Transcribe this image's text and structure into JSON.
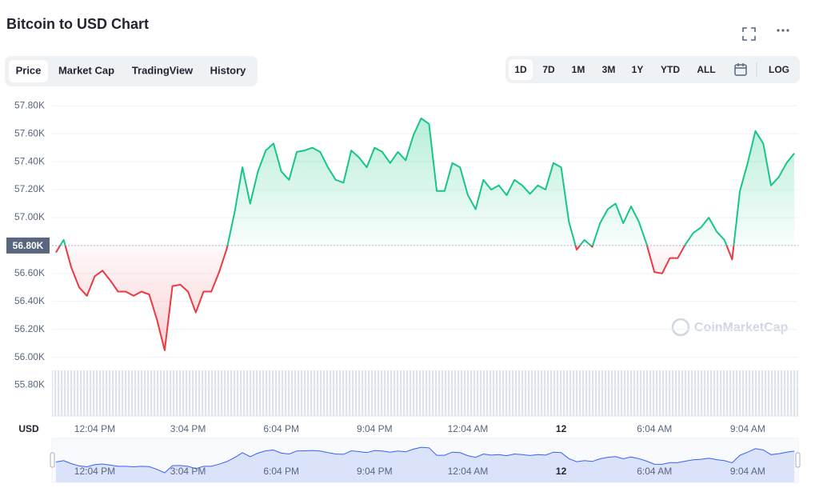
{
  "ui": {
    "tabs": [
      "Price",
      "Market Cap",
      "TradingView",
      "History"
    ],
    "active_tab": 0,
    "ranges": [
      "1D",
      "7D",
      "1M",
      "3M",
      "1Y",
      "YTD",
      "ALL"
    ],
    "active_range": 0,
    "log_button": "LOG",
    "watermark": "CoinMarketCap"
  },
  "chart_data": {
    "type": "line",
    "title": "Bitcoin to USD Chart",
    "yaxis_label": "USD",
    "categories": [
      null,
      null,
      null,
      null,
      null,
      "12:04 PM",
      null,
      null,
      null,
      null,
      null,
      null,
      null,
      null,
      null,
      null,
      null,
      "3:04 PM",
      null,
      null,
      null,
      null,
      null,
      null,
      null,
      null,
      null,
      null,
      null,
      "6:04 PM",
      null,
      null,
      null,
      null,
      null,
      null,
      null,
      null,
      null,
      null,
      null,
      "9:04 PM",
      null,
      null,
      null,
      null,
      null,
      null,
      null,
      null,
      null,
      null,
      null,
      "12:04 AM",
      null,
      null,
      null,
      null,
      null,
      null,
      null,
      null,
      null,
      null,
      null,
      "12",
      null,
      null,
      null,
      null,
      null,
      null,
      null,
      null,
      null,
      null,
      null,
      "6:04 AM",
      null,
      null,
      null,
      null,
      null,
      null,
      null,
      null,
      null,
      null,
      null,
      "9:04 AM",
      null,
      null,
      null,
      null,
      null,
      null
    ],
    "values": [
      56750,
      56840,
      56640,
      56500,
      56440,
      56580,
      56620,
      56550,
      56470,
      56470,
      56440,
      56470,
      56450,
      56270,
      56050,
      56510,
      56520,
      56470,
      56320,
      56470,
      56470,
      56610,
      56780,
      57040,
      57360,
      57100,
      57330,
      57480,
      57530,
      57330,
      57270,
      57470,
      57480,
      57500,
      57470,
      57360,
      57270,
      57250,
      57480,
      57430,
      57360,
      57500,
      57470,
      57390,
      57470,
      57410,
      57590,
      57710,
      57670,
      57190,
      57190,
      57390,
      57360,
      57160,
      57060,
      57270,
      57200,
      57230,
      57160,
      57270,
      57230,
      57170,
      57230,
      57200,
      57390,
      57360,
      56970,
      56770,
      56840,
      56790,
      56960,
      57060,
      57100,
      56960,
      57080,
      56970,
      56810,
      56610,
      56600,
      56710,
      56710,
      56810,
      56890,
      56930,
      57000,
      56900,
      56840,
      56700,
      57190,
      57390,
      57620,
      57530,
      57230,
      57290,
      57390,
      57460
    ],
    "ylim": [
      55580,
      57870
    ],
    "yticks": [
      {
        "value": 55800,
        "label": "55.80K"
      },
      {
        "value": 56000,
        "label": "56.00K"
      },
      {
        "value": 56200,
        "label": "56.20K"
      },
      {
        "value": 56400,
        "label": "56.40K"
      },
      {
        "value": 56600,
        "label": "56.60K"
      },
      {
        "value": 57000,
        "label": "57.00K"
      },
      {
        "value": 57200,
        "label": "57.20K"
      },
      {
        "value": 57400,
        "label": "57.40K"
      },
      {
        "value": 57600,
        "label": "57.60K"
      },
      {
        "value": 57800,
        "label": "57.80K"
      }
    ],
    "reference": {
      "value": 56800,
      "label": "56.80K"
    },
    "color_up": "#16c784",
    "color_down": "#ea3943",
    "navigator_color": "#3861fb",
    "grid": true
  }
}
